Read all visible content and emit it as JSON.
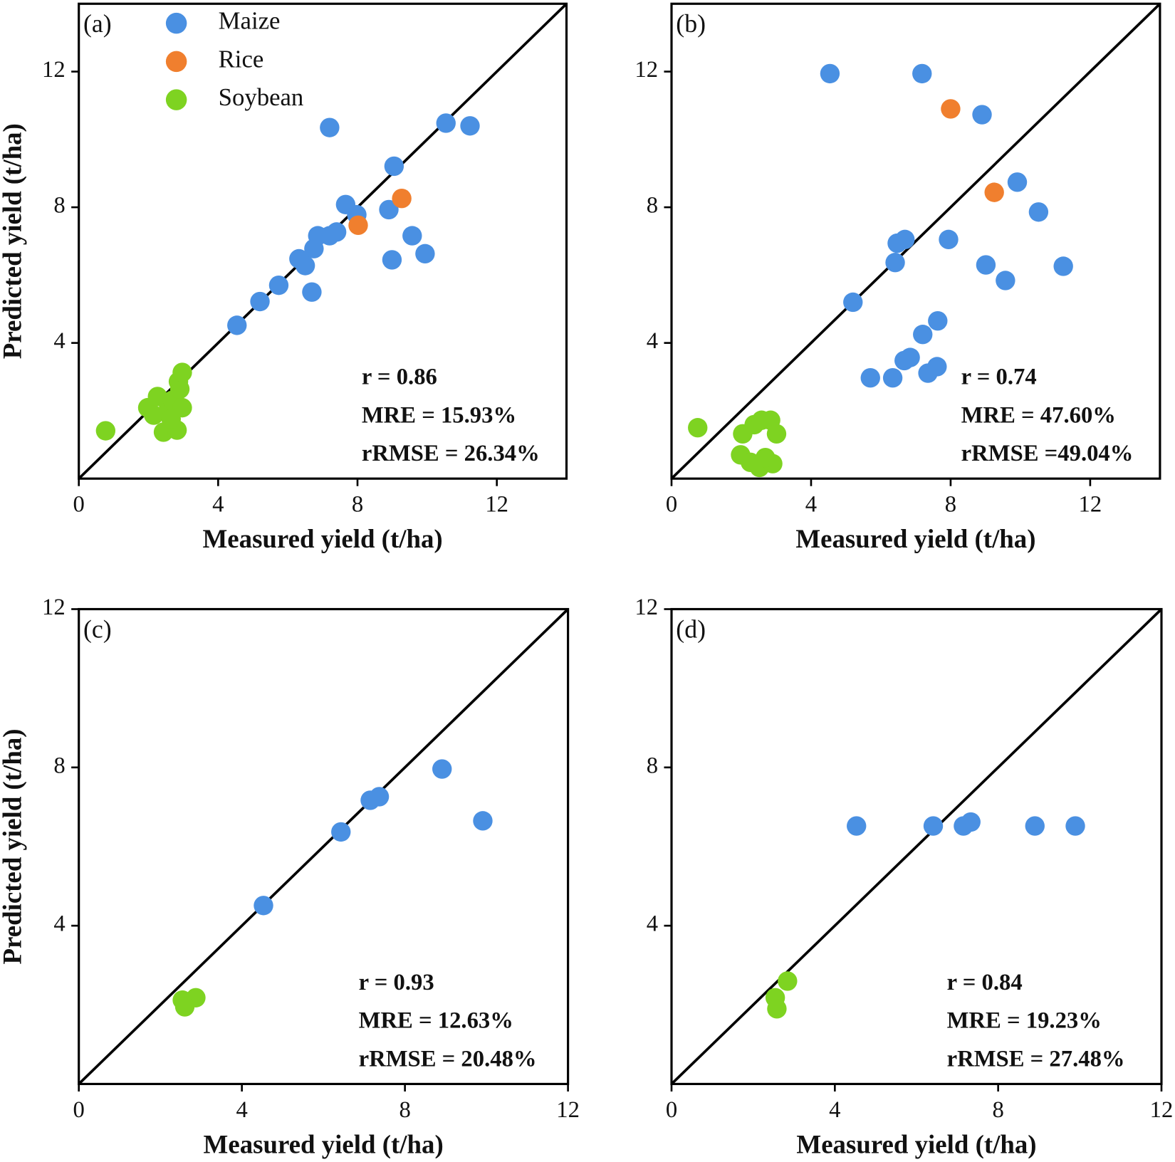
{
  "chart_data": [
    {
      "type": "scatter",
      "panel_label": "(a)",
      "x_label": "Measured yield (t/ha)",
      "y_label": "Predicted yield (t/ha)",
      "xlim": [
        0,
        14
      ],
      "ylim": [
        0,
        14
      ],
      "xticks": [
        0,
        4,
        8,
        12
      ],
      "yticks": [
        4,
        8,
        12
      ],
      "identity_line": true,
      "legend": "upper left",
      "annotations": [
        "r = 0.86",
        "MRE = 15.93%",
        "rRMSE = 26.34%"
      ],
      "series": [
        {
          "name": "Maize",
          "color": "#4a90e2",
          "x": [
            4.54,
            5.2,
            5.74,
            6.69,
            6.32,
            6.5,
            6.75,
            6.86,
            7.2,
            7.4,
            7.2,
            7.66,
            7.98,
            8.9,
            9.05,
            8.99,
            9.57,
            9.94,
            10.54,
            11.23
          ],
          "y": [
            4.52,
            5.22,
            5.7,
            5.5,
            6.48,
            6.28,
            6.78,
            7.16,
            7.16,
            7.27,
            10.35,
            8.08,
            7.78,
            7.93,
            9.21,
            6.45,
            7.16,
            6.63,
            10.48,
            10.4
          ]
        },
        {
          "name": "Rice",
          "color": "#f07f2e",
          "x": [
            8.02,
            9.27
          ],
          "y": [
            7.47,
            8.26
          ]
        },
        {
          "name": "Soybean",
          "color": "#7ed321",
          "x": [
            0.77,
            1.98,
            2.15,
            2.26,
            2.43,
            2.58,
            2.69,
            2.82,
            2.9,
            2.97,
            2.86,
            2.97,
            2.65
          ],
          "y": [
            1.41,
            2.09,
            1.87,
            2.42,
            1.37,
            2.14,
            2.31,
            1.43,
            2.64,
            2.09,
            2.86,
            3.13,
            1.76
          ]
        }
      ]
    },
    {
      "type": "scatter",
      "panel_label": "(b)",
      "x_label": "Measured yield (t/ha)",
      "xlim": [
        0,
        14
      ],
      "ylim": [
        0,
        14
      ],
      "xticks": [
        0,
        4,
        8,
        12
      ],
      "yticks": [
        4,
        8,
        12
      ],
      "identity_line": true,
      "annotations": [
        "r = 0.74",
        "MRE = 47.60%",
        "rRMSE =49.04%"
      ],
      "series": [
        {
          "color": "#4a90e2",
          "x": [
            4.54,
            7.18,
            8.9,
            9.91,
            10.52,
            11.23,
            9.57,
            9.01,
            7.94,
            6.69,
            6.47,
            6.41,
            5.2,
            7.63,
            7.2,
            6.84,
            6.67,
            7.61,
            7.35,
            5.7,
            6.34
          ],
          "y": [
            11.94,
            11.94,
            10.73,
            8.74,
            7.86,
            6.26,
            5.84,
            6.3,
            7.05,
            7.05,
            6.94,
            6.37,
            5.2,
            4.65,
            4.25,
            3.57,
            3.48,
            3.3,
            3.11,
            2.97,
            2.97
          ]
        },
        {
          "color": "#f07f2e",
          "x": [
            8.0,
            9.25
          ],
          "y": [
            10.9,
            8.44
          ]
        },
        {
          "color": "#7ed321",
          "x": [
            0.75,
            2.04,
            2.37,
            2.58,
            2.84,
            3.01,
            1.98,
            2.26,
            2.52,
            2.9,
            2.69
          ],
          "y": [
            1.5,
            1.32,
            1.59,
            1.72,
            1.72,
            1.32,
            0.7,
            0.48,
            0.33,
            0.44,
            0.62
          ]
        }
      ]
    },
    {
      "type": "scatter",
      "panel_label": "(c)",
      "x_label": "Measured yield (t/ha)",
      "y_label": "Predicted yield (t/ha)",
      "xlim": [
        0,
        12
      ],
      "ylim": [
        0,
        12
      ],
      "xticks": [
        0,
        4,
        8,
        12
      ],
      "yticks": [
        4,
        8,
        12
      ],
      "identity_line": true,
      "annotations": [
        "r = 0.93",
        "MRE = 12.63%",
        "rRMSE = 20.48%"
      ],
      "series": [
        {
          "color": "#4a90e2",
          "x": [
            4.53,
            6.43,
            7.15,
            7.37,
            8.91,
            9.91
          ],
          "y": [
            4.51,
            6.37,
            7.17,
            7.26,
            7.96,
            6.65
          ]
        },
        {
          "color": "#7ed321",
          "x": [
            2.54,
            2.87,
            2.6
          ],
          "y": [
            2.12,
            2.18,
            1.95
          ]
        }
      ]
    },
    {
      "type": "scatter",
      "panel_label": "(d)",
      "x_label": "Measured yield (t/ha)",
      "xlim": [
        0,
        12
      ],
      "ylim": [
        0,
        12
      ],
      "xticks": [
        0,
        4,
        8,
        12
      ],
      "yticks": [
        4,
        8,
        12
      ],
      "identity_line": true,
      "annotations": [
        "r = 0.84",
        "MRE = 19.23%",
        "rRMSE = 27.48%"
      ],
      "series": [
        {
          "color": "#4a90e2",
          "x": [
            4.53,
            6.41,
            7.15,
            7.33,
            8.9,
            9.89
          ],
          "y": [
            6.52,
            6.52,
            6.52,
            6.62,
            6.52,
            6.52
          ]
        },
        {
          "color": "#7ed321",
          "x": [
            2.84,
            2.54,
            2.58
          ],
          "y": [
            2.6,
            2.18,
            1.9
          ]
        }
      ]
    }
  ]
}
